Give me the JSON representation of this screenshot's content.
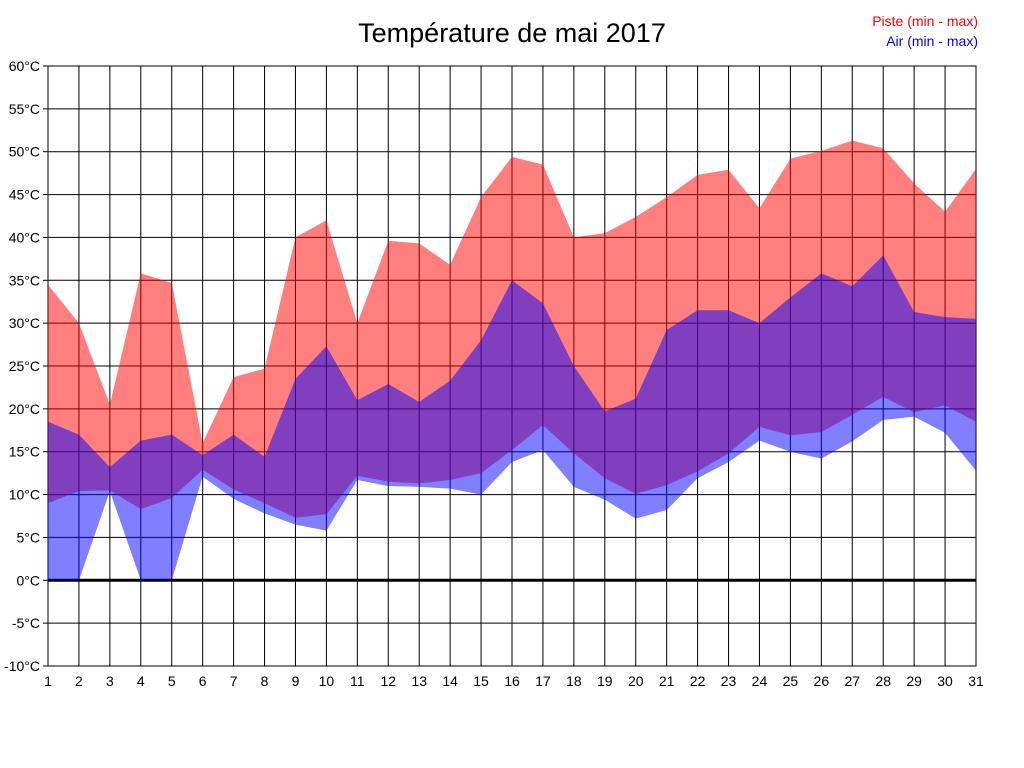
{
  "title": "Température de mai 2017",
  "legend": [
    {
      "label": "Piste (min - max)",
      "color": "#ff0000"
    },
    {
      "label": "Air (min - max)",
      "color": "#0000ff"
    }
  ],
  "axes": {
    "y_tick_labels": [
      "60°C",
      "55°C",
      "50°C",
      "45°C",
      "40°C",
      "35°C",
      "30°C",
      "25°C",
      "20°C",
      "15°C",
      "10°C",
      "5°C",
      "0°C",
      "-5°C",
      "-10°C"
    ],
    "x_tick_labels": [
      "1",
      "2",
      "3",
      "4",
      "5",
      "6",
      "7",
      "8",
      "9",
      "10",
      "11",
      "12",
      "13",
      "14",
      "15",
      "16",
      "17",
      "18",
      "19",
      "20",
      "21",
      "22",
      "23",
      "24",
      "25",
      "26",
      "27",
      "28",
      "29",
      "30",
      "31"
    ]
  },
  "colors": {
    "grid": "#000000",
    "zero_line": "#000000",
    "frame": "#000000",
    "text": "#000000",
    "background": "#ffffff",
    "piste_fill": "#ff0000",
    "air_fill": "#0000ff",
    "fill_opacity": 0.5
  },
  "chart_data": {
    "type": "area",
    "title": "Température de mai 2017",
    "xlabel": "",
    "ylabel": "°C",
    "x": [
      1,
      2,
      3,
      4,
      5,
      6,
      7,
      8,
      9,
      10,
      11,
      12,
      13,
      14,
      15,
      16,
      17,
      18,
      19,
      20,
      21,
      22,
      23,
      24,
      25,
      26,
      27,
      28,
      29,
      30,
      31
    ],
    "ylim": [
      -10,
      60
    ],
    "ytick_step": 5,
    "grid": true,
    "legend_position": "top-right",
    "series": [
      {
        "name": "Piste (min - max)",
        "color": "#ff0000",
        "opacity": 0.5,
        "min": [
          9.0,
          10.4,
          10.5,
          8.3,
          9.6,
          12.9,
          10.6,
          9.0,
          7.3,
          7.7,
          12.2,
          11.5,
          11.3,
          11.7,
          12.5,
          15.2,
          18.1,
          14.8,
          11.9,
          10.1,
          11.1,
          12.7,
          14.8,
          17.9,
          16.9,
          17.3,
          19.3,
          21.4,
          19.6,
          20.4,
          18.5
        ],
        "max": [
          34.5,
          30.0,
          20.5,
          35.8,
          34.7,
          16.0,
          23.7,
          24.7,
          40.0,
          42.0,
          30.0,
          39.6,
          39.3,
          36.8,
          44.7,
          49.4,
          48.5,
          40.0,
          40.5,
          42.4,
          44.7,
          47.3,
          47.9,
          43.4,
          49.2,
          50.1,
          51.3,
          50.4,
          46.3,
          43.0,
          48.0
        ]
      },
      {
        "name": "Air (min - max)",
        "color": "#0000ff",
        "opacity": 0.5,
        "min": [
          0.0,
          0.0,
          10.4,
          0.0,
          0.0,
          12.1,
          9.5,
          7.8,
          6.5,
          5.8,
          11.7,
          11.0,
          10.9,
          10.7,
          10.0,
          13.8,
          15.2,
          10.9,
          9.4,
          7.2,
          8.2,
          11.9,
          13.8,
          16.3,
          15.0,
          14.2,
          16.2,
          18.7,
          19.1,
          17.2,
          12.8
        ],
        "max": [
          18.5,
          17.0,
          13.2,
          16.3,
          17.0,
          14.6,
          17.0,
          14.4,
          23.5,
          27.3,
          21.0,
          22.9,
          20.8,
          23.3,
          28.0,
          35.0,
          32.3,
          25.0,
          19.7,
          21.2,
          29.2,
          31.5,
          31.5,
          30.0,
          33.0,
          35.8,
          34.3,
          37.9,
          31.3,
          30.7,
          30.5
        ]
      }
    ]
  }
}
